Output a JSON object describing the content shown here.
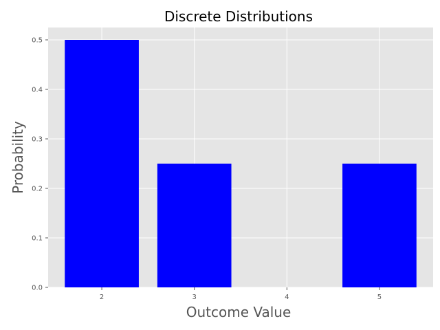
{
  "chart_data": {
    "type": "bar",
    "title": "Discrete Distributions",
    "xlabel": "Outcome Value",
    "ylabel": "Probability",
    "x": [
      2,
      3,
      5
    ],
    "values": [
      0.5,
      0.25,
      0.25
    ],
    "xticks": [
      2,
      3,
      4,
      5
    ],
    "yticks": [
      0.0,
      0.1,
      0.2,
      0.3,
      0.4,
      0.5
    ],
    "xlim": [
      1.42,
      5.58
    ],
    "ylim": [
      0,
      0.525
    ],
    "bar_width": 0.8,
    "grid": true,
    "legend": "none",
    "colors": {
      "bar": "#0000ff",
      "plot_background": "#e5e5e5",
      "grid": "#ffffff",
      "text": "#000000",
      "tick_text": "#555555",
      "label_text": "#555555"
    }
  }
}
